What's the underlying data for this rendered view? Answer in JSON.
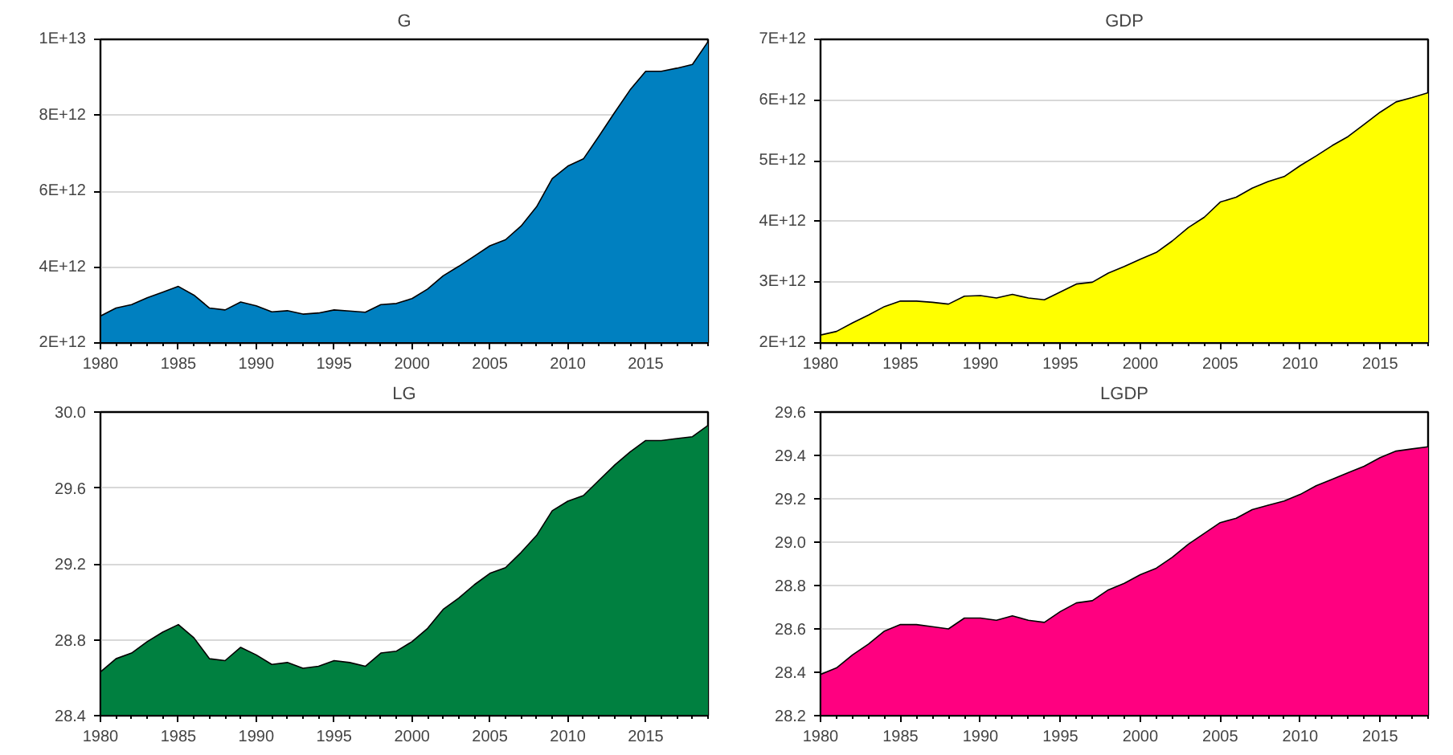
{
  "chart_data": [
    {
      "type": "area",
      "title": "G",
      "x": [
        1980,
        1981,
        1982,
        1983,
        1984,
        1985,
        1986,
        1987,
        1988,
        1989,
        1990,
        1991,
        1992,
        1993,
        1994,
        1995,
        1996,
        1997,
        1998,
        1999,
        2000,
        2001,
        2002,
        2003,
        2004,
        2005,
        2006,
        2007,
        2008,
        2009,
        2010,
        2011,
        2012,
        2013,
        2014,
        2015,
        2016,
        2017,
        2018,
        2019
      ],
      "series": [
        {
          "color": "#0080c0",
          "values": [
            2710000000000.0,
            2920000000000.0,
            3010000000000.0,
            3190000000000.0,
            3340000000000.0,
            3490000000000.0,
            3260000000000.0,
            2920000000000.0,
            2870000000000.0,
            3080000000000.0,
            2980000000000.0,
            2820000000000.0,
            2850000000000.0,
            2760000000000.0,
            2790000000000.0,
            2870000000000.0,
            2840000000000.0,
            2810000000000.0,
            3010000000000.0,
            3040000000000.0,
            3170000000000.0,
            3420000000000.0,
            3770000000000.0,
            4020000000000.0,
            4290000000000.0,
            4560000000000.0,
            4720000000000.0,
            5080000000000.0,
            5590000000000.0,
            6330000000000.0,
            6660000000000.0,
            6850000000000.0,
            7450000000000.0,
            8070000000000.0,
            8670000000000.0,
            9160000000000.0,
            9160000000000.0,
            9240000000000.0,
            9340000000000.0,
            9940000000000.0
          ]
        }
      ],
      "xlim": [
        1980,
        2019
      ],
      "xticks": [
        1980,
        1985,
        1990,
        1995,
        2000,
        2005,
        2010,
        2015
      ],
      "ylim": [
        2000000000000.0,
        10000000000000.0
      ],
      "yticks": [
        {
          "value": 2000000000000.0,
          "label": "2E+12"
        },
        {
          "value": 4000000000000.0,
          "label": "4E+12"
        },
        {
          "value": 6000000000000.0,
          "label": "6E+12"
        },
        {
          "value": 8000000000000.0,
          "label": "8E+12"
        },
        {
          "value": 10000000000000.0,
          "label": "1E+13"
        }
      ],
      "grid": "y"
    },
    {
      "type": "area",
      "title": "GDP",
      "x": [
        1980,
        1981,
        1982,
        1983,
        1984,
        1985,
        1986,
        1987,
        1988,
        1989,
        1990,
        1991,
        1992,
        1993,
        1994,
        1995,
        1996,
        1997,
        1998,
        1999,
        2000,
        2001,
        2002,
        2003,
        2004,
        2005,
        2006,
        2007,
        2008,
        2009,
        2010,
        2011,
        2012,
        2013,
        2014,
        2015,
        2016,
        2017,
        2018
      ],
      "series": [
        {
          "color": "#ffff00",
          "values": [
            2130000000000.0,
            2190000000000.0,
            2330000000000.0,
            2460000000000.0,
            2600000000000.0,
            2690000000000.0,
            2690000000000.0,
            2670000000000.0,
            2640000000000.0,
            2770000000000.0,
            2780000000000.0,
            2740000000000.0,
            2800000000000.0,
            2740000000000.0,
            2710000000000.0,
            2840000000000.0,
            2970000000000.0,
            3000000000000.0,
            3150000000000.0,
            3260000000000.0,
            3380000000000.0,
            3490000000000.0,
            3680000000000.0,
            3900000000000.0,
            4070000000000.0,
            4320000000000.0,
            4400000000000.0,
            4550000000000.0,
            4660000000000.0,
            4740000000000.0,
            4920000000000.0,
            5080000000000.0,
            5250000000000.0,
            5400000000000.0,
            5600000000000.0,
            5800000000000.0,
            5970000000000.0,
            6040000000000.0,
            6120000000000.0
          ]
        }
      ],
      "xlim": [
        1980,
        2018
      ],
      "xticks": [
        1980,
        1985,
        1990,
        1995,
        2000,
        2005,
        2010,
        2015
      ],
      "ylim": [
        2000000000000.0,
        7000000000000.0
      ],
      "yticks": [
        {
          "value": 2000000000000.0,
          "label": "2E+12"
        },
        {
          "value": 3000000000000.0,
          "label": "3E+12"
        },
        {
          "value": 4000000000000.0,
          "label": "4E+12"
        },
        {
          "value": 5000000000000.0,
          "label": "5E+12"
        },
        {
          "value": 6000000000000.0,
          "label": "6E+12"
        },
        {
          "value": 7000000000000.0,
          "label": "7E+12"
        }
      ],
      "grid": "y"
    },
    {
      "type": "area",
      "title": "LG",
      "x": [
        1980,
        1981,
        1982,
        1983,
        1984,
        1985,
        1986,
        1987,
        1988,
        1989,
        1990,
        1991,
        1992,
        1993,
        1994,
        1995,
        1996,
        1997,
        1998,
        1999,
        2000,
        2001,
        2002,
        2003,
        2004,
        2005,
        2006,
        2007,
        2008,
        2009,
        2010,
        2011,
        2012,
        2013,
        2014,
        2015,
        2016,
        2017,
        2018,
        2019
      ],
      "series": [
        {
          "color": "#008040",
          "values": [
            28.63,
            28.7,
            28.73,
            28.79,
            28.84,
            28.88,
            28.81,
            28.7,
            28.69,
            28.76,
            28.72,
            28.67,
            28.68,
            28.65,
            28.66,
            28.69,
            28.68,
            28.66,
            28.73,
            28.74,
            28.79,
            28.86,
            28.96,
            29.02,
            29.09,
            29.15,
            29.18,
            29.26,
            29.35,
            29.48,
            29.53,
            29.56,
            29.64,
            29.72,
            29.79,
            29.85,
            29.85,
            29.86,
            29.87,
            29.93
          ]
        }
      ],
      "xlim": [
        1980,
        2019
      ],
      "xticks": [
        1980,
        1985,
        1990,
        1995,
        2000,
        2005,
        2010,
        2015
      ],
      "ylim": [
        28.4,
        30.0
      ],
      "yticks": [
        {
          "value": 28.4,
          "label": "28.4"
        },
        {
          "value": 28.8,
          "label": "28.8"
        },
        {
          "value": 29.2,
          "label": "29.2"
        },
        {
          "value": 29.6,
          "label": "29.6"
        },
        {
          "value": 30.0,
          "label": "30.0"
        }
      ],
      "grid": "y"
    },
    {
      "type": "area",
      "title": "LGDP",
      "x": [
        1980,
        1981,
        1982,
        1983,
        1984,
        1985,
        1986,
        1987,
        1988,
        1989,
        1990,
        1991,
        1992,
        1993,
        1994,
        1995,
        1996,
        1997,
        1998,
        1999,
        2000,
        2001,
        2002,
        2003,
        2004,
        2005,
        2006,
        2007,
        2008,
        2009,
        2010,
        2011,
        2012,
        2013,
        2014,
        2015,
        2016,
        2017,
        2018
      ],
      "series": [
        {
          "color": "#ff0080",
          "values": [
            28.39,
            28.42,
            28.48,
            28.53,
            28.59,
            28.62,
            28.62,
            28.61,
            28.6,
            28.65,
            28.65,
            28.64,
            28.66,
            28.64,
            28.63,
            28.68,
            28.72,
            28.73,
            28.78,
            28.81,
            28.85,
            28.88,
            28.93,
            28.99,
            29.04,
            29.09,
            29.11,
            29.15,
            29.17,
            29.19,
            29.22,
            29.26,
            29.29,
            29.32,
            29.35,
            29.39,
            29.42,
            29.43,
            29.44
          ]
        }
      ],
      "xlim": [
        1980,
        2018
      ],
      "xticks": [
        1980,
        1985,
        1990,
        1995,
        2000,
        2005,
        2010,
        2015
      ],
      "ylim": [
        28.2,
        29.6
      ],
      "yticks": [
        {
          "value": 28.2,
          "label": "28.2"
        },
        {
          "value": 28.4,
          "label": "28.4"
        },
        {
          "value": 28.6,
          "label": "28.6"
        },
        {
          "value": 28.8,
          "label": "28.8"
        },
        {
          "value": 29.0,
          "label": "29.0"
        },
        {
          "value": 29.2,
          "label": "29.2"
        },
        {
          "value": 29.4,
          "label": "29.4"
        },
        {
          "value": 29.6,
          "label": "29.6"
        }
      ],
      "grid": "y"
    }
  ]
}
